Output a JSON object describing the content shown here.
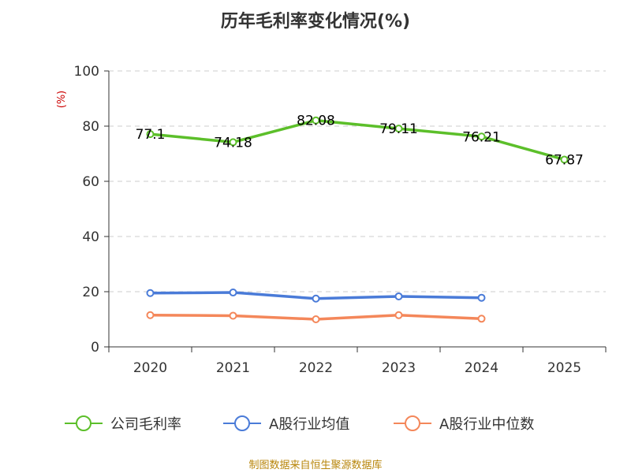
{
  "chart_data": {
    "type": "line",
    "title": "历年毛利率变化情况(%)",
    "ylabel": "(%)",
    "xlabel": "",
    "ylim": [
      0,
      100
    ],
    "yticks": [
      0,
      20,
      40,
      60,
      80,
      100
    ],
    "categories": [
      "2020",
      "2021",
      "2022",
      "2023",
      "2024",
      "2025"
    ],
    "grid": true,
    "legend_position": "bottom",
    "series": [
      {
        "name": "公司毛利率",
        "color": "#5cbf2a",
        "show_labels": true,
        "labels": [
          "77.1",
          "74.18",
          "82.08",
          "79.11",
          "76.21",
          "67.87"
        ],
        "values": [
          77.1,
          74.18,
          82.08,
          79.11,
          76.21,
          67.87
        ]
      },
      {
        "name": "A股行业均值",
        "color": "#4a7bd8",
        "show_labels": false,
        "values": [
          19.5,
          19.7,
          17.5,
          18.3,
          17.8,
          null
        ]
      },
      {
        "name": "A股行业中位数",
        "color": "#f4875a",
        "show_labels": false,
        "values": [
          11.5,
          11.3,
          10.0,
          11.5,
          10.2,
          null
        ]
      }
    ],
    "source": "制图数据来自恒生聚源数据库"
  }
}
